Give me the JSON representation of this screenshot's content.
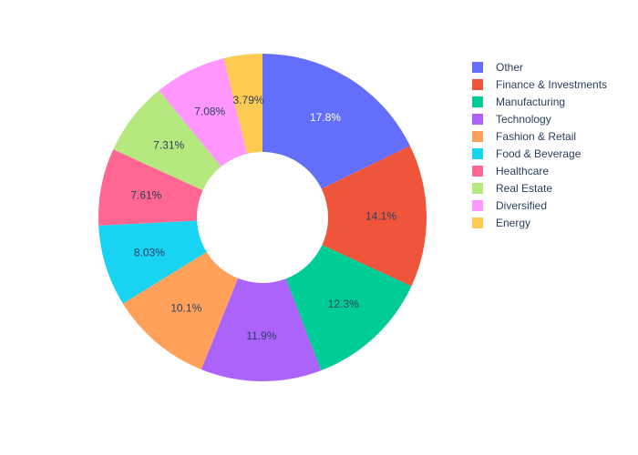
{
  "chart_data": {
    "type": "pie",
    "hole": true,
    "legend_position": "right",
    "sort": "descending",
    "direction": "clockwise",
    "categories": [
      "Other",
      "Finance & Investments",
      "Manufacturing",
      "Technology",
      "Fashion & Retail",
      "Food & Beverage",
      "Healthcare",
      "Real Estate",
      "Diversified",
      "Energy"
    ],
    "values": [
      17.8,
      14.1,
      12.3,
      11.9,
      10.1,
      8.03,
      7.61,
      7.31,
      7.08,
      3.79
    ],
    "value_labels": [
      "17.8%",
      "14.1%",
      "12.3%",
      "11.9%",
      "10.1%",
      "8.03%",
      "7.61%",
      "7.31%",
      "7.08%",
      "3.79%"
    ],
    "colors": [
      "#636efa",
      "#EF553B",
      "#00cc96",
      "#ab63fa",
      "#FFA15A",
      "#19d3f3",
      "#FF6692",
      "#B6E880",
      "#FF97FF",
      "#FECB52"
    ],
    "label_colors": [
      "#ffffff",
      "#2a3f5f",
      "#2a3f5f",
      "#2a3f5f",
      "#2a3f5f",
      "#2a3f5f",
      "#2a3f5f",
      "#2a3f5f",
      "#2a3f5f",
      "#2a3f5f"
    ]
  }
}
